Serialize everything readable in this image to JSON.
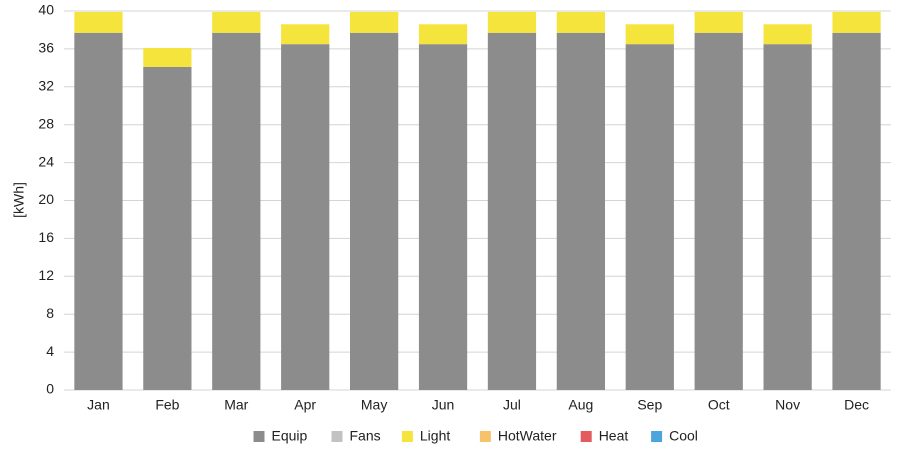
{
  "chart_data": {
    "type": "stacked_bar",
    "y_label": "[kWh]",
    "categories": [
      "Jan",
      "Feb",
      "Mar",
      "Apr",
      "May",
      "Jun",
      "Jul",
      "Aug",
      "Sep",
      "Oct",
      "Nov",
      "Dec"
    ],
    "series": [
      {
        "name": "Equip",
        "color": "#8c8c8c",
        "values": [
          37.7,
          34.1,
          37.7,
          36.5,
          37.7,
          36.5,
          37.7,
          37.7,
          36.5,
          37.7,
          36.5,
          37.7
        ]
      },
      {
        "name": "Fans",
        "color": "#c2c2c2",
        "values": [
          0,
          0,
          0,
          0,
          0,
          0,
          0,
          0,
          0,
          0,
          0,
          0
        ]
      },
      {
        "name": "Light",
        "color": "#f5e43c",
        "values": [
          2.2,
          2.0,
          2.2,
          2.1,
          2.2,
          2.1,
          2.2,
          2.2,
          2.1,
          2.2,
          2.1,
          2.2
        ]
      },
      {
        "name": "HotWater",
        "color": "#f6c36b",
        "values": [
          0,
          0,
          0,
          0,
          0,
          0,
          0,
          0,
          0,
          0,
          0,
          0
        ]
      },
      {
        "name": "Heat",
        "color": "#e35b5f",
        "values": [
          0,
          0,
          0,
          0,
          0,
          0,
          0,
          0,
          0,
          0,
          0,
          0
        ]
      },
      {
        "name": "Cool",
        "color": "#4ba4dc",
        "values": [
          0,
          0,
          0,
          0,
          0,
          0,
          0,
          0,
          0,
          0,
          0,
          0
        ]
      }
    ],
    "ylim": [
      0,
      40
    ],
    "yticks": [
      0,
      4,
      8,
      12,
      16,
      20,
      24,
      28,
      32,
      36,
      40
    ],
    "grid": true
  }
}
